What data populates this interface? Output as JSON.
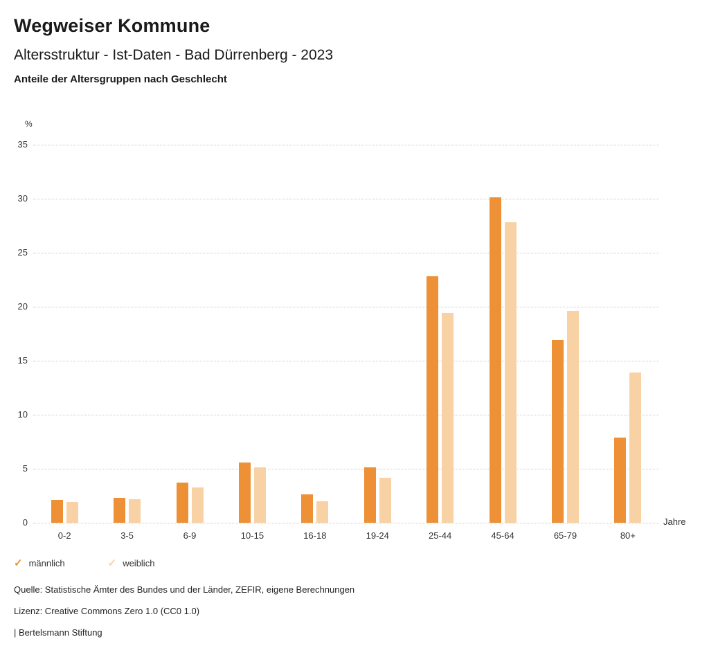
{
  "header": {
    "title": "Wegweiser Kommune",
    "subtitle": "Altersstruktur - Ist-Daten - Bad Dürrenberg - 2023",
    "chart_heading": "Anteile der Altersgruppen nach Geschlecht"
  },
  "chart_data": {
    "type": "bar",
    "title": "Anteile der Altersgruppen nach Geschlecht",
    "categories": [
      "0-2",
      "3-5",
      "6-9",
      "10-15",
      "16-18",
      "19-24",
      "25-44",
      "45-64",
      "65-79",
      "80+"
    ],
    "series": [
      {
        "name": "männlich",
        "color": "#ED9036",
        "values": [
          2.1,
          2.3,
          3.7,
          5.6,
          2.6,
          5.1,
          22.8,
          30.1,
          16.9,
          7.9
        ]
      },
      {
        "name": "weiblich",
        "color": "#F8D2A4",
        "values": [
          1.9,
          2.2,
          3.3,
          5.1,
          2.0,
          4.2,
          19.4,
          27.8,
          19.6,
          13.9
        ]
      }
    ],
    "ylabel": "%",
    "xlabel": "Jahre",
    "ylim": [
      0,
      35
    ],
    "ytick_step": 5,
    "grid": true,
    "gridline_style": "dotted",
    "legend_position": "bottom-left"
  },
  "axes": {
    "y_unit": "%",
    "x_unit": "Jahre",
    "yticks": [
      "0",
      "5",
      "10",
      "15",
      "20",
      "25",
      "30",
      "35"
    ]
  },
  "legend": {
    "items": [
      {
        "label": "männlich",
        "marker": "✓",
        "color": "#ED9036"
      },
      {
        "label": "weiblich",
        "marker": "✓",
        "color": "#F8D2A4"
      }
    ]
  },
  "footer": {
    "source": "Quelle: Statistische Ämter des Bundes und der Länder, ZEFIR, eigene Berechnungen",
    "license": "Lizenz: Creative Commons Zero 1.0 (CC0 1.0)",
    "attribution": "| Bertelsmann Stiftung"
  }
}
